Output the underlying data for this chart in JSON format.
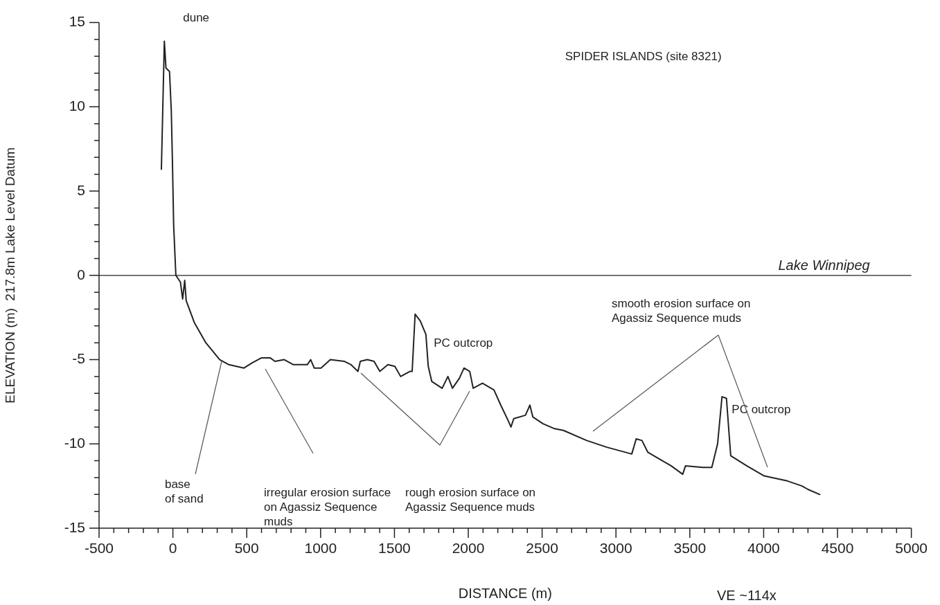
{
  "chart_data": {
    "type": "line",
    "title": "SPIDER ISLANDS (site 8321)",
    "xlabel": "DISTANCE (m)",
    "ylabel": "ELEVATION (m)  217.8m Lake Level Datum",
    "series": [
      {
        "color": "#222222",
        "x": [
          -78,
          -58,
          -47,
          -23,
          -11,
          -3,
          5,
          20,
          51,
          66,
          80,
          90,
          145,
          223,
          317,
          379,
          481,
          535,
          598,
          660,
          691,
          754,
          816,
          871,
          910,
          933,
          957,
          1003,
          1066,
          1160,
          1206,
          1253,
          1269,
          1316,
          1362,
          1401,
          1456,
          1503,
          1542,
          1604,
          1620,
          1640,
          1675,
          1713,
          1729,
          1753,
          1823,
          1862,
          1893,
          1940,
          1971,
          2010,
          2033,
          2096,
          2174,
          2220,
          2269,
          2289,
          2308,
          2387,
          2417,
          2437,
          2506,
          2584,
          2644,
          2802,
          2939,
          3107,
          3137,
          3176,
          3216,
          3294,
          3373,
          3452,
          3471,
          3590,
          3649,
          3688,
          3718,
          3748,
          3777,
          3885,
          4004,
          4161,
          4260,
          4300,
          4380
        ],
        "values": [
          6.3,
          13.9,
          12.3,
          12.1,
          9.8,
          6.7,
          3.0,
          0.0,
          -0.4,
          -1.4,
          -0.3,
          -1.5,
          -2.8,
          -4.0,
          -5.0,
          -5.3,
          -5.5,
          -5.2,
          -4.9,
          -4.9,
          -5.1,
          -5.0,
          -5.3,
          -5.3,
          -5.3,
          -5.0,
          -5.5,
          -5.5,
          -5.0,
          -5.1,
          -5.3,
          -5.7,
          -5.1,
          -5.0,
          -5.1,
          -5.7,
          -5.3,
          -5.4,
          -6.0,
          -5.7,
          -5.7,
          -2.3,
          -2.7,
          -3.5,
          -5.4,
          -6.3,
          -6.7,
          -6.0,
          -6.7,
          -6.1,
          -5.5,
          -5.7,
          -6.7,
          -6.4,
          -6.8,
          -7.7,
          -8.6,
          -9.0,
          -8.5,
          -8.3,
          -7.7,
          -8.4,
          -8.8,
          -9.1,
          -9.2,
          -9.8,
          -10.2,
          -10.6,
          -9.7,
          -9.8,
          -10.5,
          -10.9,
          -11.3,
          -11.8,
          -11.3,
          -11.4,
          -11.4,
          -10.0,
          -7.2,
          -7.3,
          -10.7,
          -11.3,
          -11.9,
          -12.2,
          -12.5,
          -12.7,
          -13.0
        ]
      }
    ],
    "xlim": [
      -500,
      5000
    ],
    "xticks": [
      -500,
      {
        "value": -400,
        "label": null
      },
      {
        "value": -300,
        "label": null
      },
      {
        "value": -200,
        "label": null
      },
      {
        "value": -100,
        "label": null
      },
      0,
      {
        "value": 100,
        "label": null
      },
      {
        "value": 200,
        "label": null
      },
      {
        "value": 300,
        "label": null
      },
      {
        "value": 400,
        "label": null
      },
      500,
      {
        "value": 600,
        "label": null
      },
      {
        "value": 700,
        "label": null
      },
      {
        "value": 800,
        "label": null
      },
      {
        "value": 900,
        "label": null
      },
      1000,
      {
        "value": 1100,
        "label": null
      },
      {
        "value": 1200,
        "label": null
      },
      {
        "value": 1300,
        "label": null
      },
      {
        "value": 1400,
        "label": null
      },
      1500,
      {
        "value": 1600,
        "label": null
      },
      {
        "value": 1700,
        "label": null
      },
      {
        "value": 1800,
        "label": null
      },
      {
        "value": 1900,
        "label": null
      },
      2000,
      {
        "value": 2100,
        "label": null
      },
      {
        "value": 2200,
        "label": null
      },
      {
        "value": 2300,
        "label": null
      },
      {
        "value": 2400,
        "label": null
      },
      2500,
      {
        "value": 2600,
        "label": null
      },
      {
        "value": 2700,
        "label": null
      },
      {
        "value": 2800,
        "label": null
      },
      {
        "value": 2900,
        "label": null
      },
      3000,
      {
        "value": 3100,
        "label": null
      },
      {
        "value": 3200,
        "label": null
      },
      {
        "value": 3300,
        "label": null
      },
      {
        "value": 3400,
        "label": null
      },
      3500,
      {
        "value": 3600,
        "label": null
      },
      {
        "value": 3700,
        "label": null
      },
      {
        "value": 3800,
        "label": null
      },
      {
        "value": 3900,
        "label": null
      },
      4000,
      {
        "value": 4100,
        "label": null
      },
      {
        "value": 4200,
        "label": null
      },
      {
        "value": 4300,
        "label": null
      },
      {
        "value": 4400,
        "label": null
      },
      4500,
      {
        "value": 4600,
        "label": null
      },
      {
        "value": 4700,
        "label": null
      },
      {
        "value": 4800,
        "label": null
      },
      {
        "value": 4900,
        "label": null
      },
      5000
    ],
    "ylim": [
      -15,
      15
    ],
    "yticks": [
      -15,
      {
        "value": -14,
        "label": null
      },
      {
        "value": -13,
        "label": null
      },
      {
        "value": -12,
        "label": null
      },
      {
        "value": -11,
        "label": null
      },
      -10,
      {
        "value": -9,
        "label": null
      },
      {
        "value": -8,
        "label": null
      },
      {
        "value": -7,
        "label": null
      },
      {
        "value": -6,
        "label": null
      },
      -5,
      {
        "value": -4,
        "label": null
      },
      {
        "value": -3,
        "label": null
      },
      {
        "value": -2,
        "label": null
      },
      {
        "value": -1,
        "label": null
      },
      0,
      {
        "value": 1,
        "label": null
      },
      {
        "value": 2,
        "label": null
      },
      {
        "value": 3,
        "label": null
      },
      {
        "value": 4,
        "label": null
      },
      5,
      {
        "value": 6,
        "label": null
      },
      {
        "value": 7,
        "label": null
      },
      {
        "value": 8,
        "label": null
      },
      {
        "value": 9,
        "label": null
      },
      10,
      {
        "value": 11,
        "label": null
      },
      {
        "value": 12,
        "label": null
      },
      {
        "value": 13,
        "label": null
      },
      {
        "value": 14,
        "label": null
      },
      15
    ],
    "ref_lines": [
      {
        "axis": "y",
        "value": 0,
        "label": "Lake Winnipeg",
        "color": "#222222"
      }
    ],
    "annotations": [
      {
        "text": "dune",
        "x": -58,
        "y": 13.9
      },
      {
        "text": "base\nof sand",
        "x": 330,
        "y": -5.1
      },
      "irregular erosion surface\non Agassiz Sequence\nmuds",
      "rough erosion surface on\nAgassiz Sequence muds",
      "smooth erosion surface on\nAgassiz Sequence muds",
      {
        "text": "PC outcrop",
        "x": 1640,
        "y": -2.3
      },
      {
        "text": "PC outcrop",
        "x": 3718,
        "y": -7.2
      },
      "VE ~114x"
    ],
    "grid": false,
    "legend": false,
    "marker": "none",
    "line_style": "solid"
  }
}
